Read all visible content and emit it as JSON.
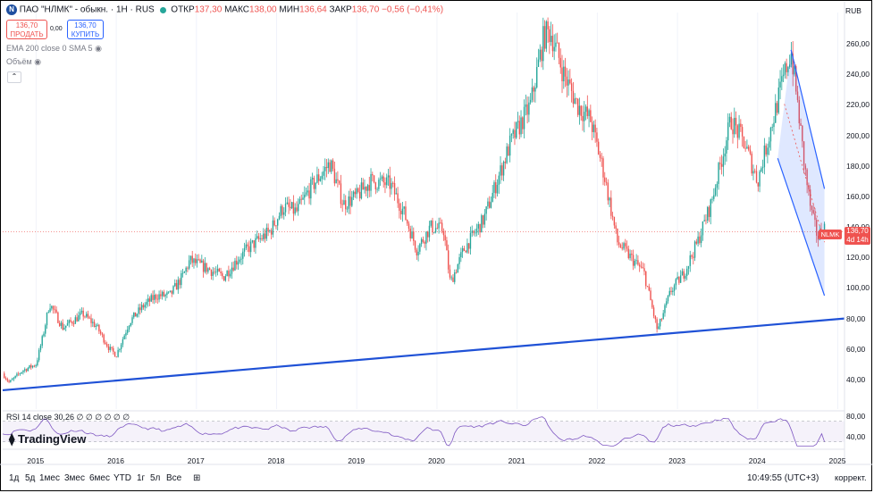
{
  "header": {
    "symbol_name": "ПАО \"НЛМК\" - обыкн. · 1Н · RUS",
    "logo_letter": "N",
    "open_label": "ОТКР",
    "open_value": "137,30",
    "high_label": "МАКС",
    "high_value": "138,00",
    "low_label": "МИН",
    "low_value": "136,64",
    "close_label": "ЗАКР",
    "close_value": "136,70",
    "change": "−0,56 (−0,41%)"
  },
  "trade": {
    "sell_price": "136,70",
    "sell_label": "ПРОДАТЬ",
    "spread": "0,00",
    "buy_price": "136,70",
    "buy_label": "КУПИТЬ"
  },
  "indicators": {
    "ema": "EMA 200 close 0 SMA 5",
    "volume": "Объём",
    "collapse_glyph": "⌃",
    "rsi": "RSI 14 close  30,26  ∅ ∅ ∅ ∅ ∅ ∅"
  },
  "brand": "TradingView",
  "price_scale": {
    "currency": "RUB",
    "ticks": [
      "260,00",
      "240,00",
      "220,00",
      "200,00",
      "180,00",
      "160,00",
      "140,00",
      "120,00",
      "100,00",
      "80,00",
      "60,00",
      "40,00"
    ]
  },
  "rsi_scale": {
    "ticks": [
      "80,00",
      "40,00"
    ]
  },
  "last_price": {
    "ticker": "NLMK",
    "value": "136,70",
    "countdown": "4d 14h"
  },
  "time_scale": {
    "ticks": [
      "2015",
      "2016",
      "2017",
      "2018",
      "2019",
      "2020",
      "2021",
      "2022",
      "2023",
      "2024",
      "2025"
    ]
  },
  "toolbar": {
    "ranges": [
      "1д",
      "5д",
      "1мес",
      "3мес",
      "6мес",
      "YTD",
      "1г",
      "5л",
      "Все"
    ],
    "clock": "10:49:55 (UTC+3)",
    "adjust": "коррект."
  },
  "colors": {
    "up": "#26a69a",
    "down": "#ef5350",
    "trend": "#1f51d6",
    "channel": "#2962ff",
    "rsi": "#7e57c2"
  },
  "chart_data": {
    "type": "candlestick",
    "title": "ПАО \"НЛМК\" - обыкн. · 1Н · RUS",
    "currency": "RUB",
    "x_range": [
      "2014-08",
      "2025-02"
    ],
    "ylim": [
      30,
      270
    ],
    "y_ticks": [
      40,
      60,
      80,
      100,
      120,
      140,
      160,
      180,
      200,
      220,
      240,
      260
    ],
    "x_ticks": [
      "2015",
      "2016",
      "2017",
      "2018",
      "2019",
      "2020",
      "2021",
      "2022",
      "2023",
      "2024",
      "2025"
    ],
    "price_path": [
      [
        "2014-08",
        44
      ],
      [
        "2014-09",
        38
      ],
      [
        "2014-11",
        46
      ],
      [
        "2015-01",
        50
      ],
      [
        "2015-02",
        68
      ],
      [
        "2015-03",
        90
      ],
      [
        "2015-05",
        74
      ],
      [
        "2015-08",
        83
      ],
      [
        "2015-10",
        75
      ],
      [
        "2015-12",
        60
      ],
      [
        "2016-01",
        56
      ],
      [
        "2016-03",
        78
      ],
      [
        "2016-05",
        88
      ],
      [
        "2016-07",
        95
      ],
      [
        "2016-09",
        95
      ],
      [
        "2016-11",
        108
      ],
      [
        "2016-12",
        118
      ],
      [
        "2017-03",
        112
      ],
      [
        "2017-05",
        107
      ],
      [
        "2017-07",
        118
      ],
      [
        "2017-09",
        127
      ],
      [
        "2017-12",
        137
      ],
      [
        "2018-02",
        153
      ],
      [
        "2018-04",
        150
      ],
      [
        "2018-06",
        165
      ],
      [
        "2018-09",
        182
      ],
      [
        "2018-11",
        155
      ],
      [
        "2019-01",
        160
      ],
      [
        "2019-03",
        170
      ],
      [
        "2019-06",
        168
      ],
      [
        "2019-08",
        150
      ],
      [
        "2019-10",
        125
      ],
      [
        "2019-12",
        140
      ],
      [
        "2020-02",
        138
      ],
      [
        "2020-03",
        103
      ],
      [
        "2020-05",
        125
      ],
      [
        "2020-08",
        145
      ],
      [
        "2020-10",
        170
      ],
      [
        "2020-12",
        195
      ],
      [
        "2021-03",
        220
      ],
      [
        "2021-05",
        265
      ],
      [
        "2021-06",
        268
      ],
      [
        "2021-08",
        240
      ],
      [
        "2021-10",
        220
      ],
      [
        "2021-12",
        210
      ],
      [
        "2022-02",
        175
      ],
      [
        "2022-04",
        130
      ],
      [
        "2022-06",
        120
      ],
      [
        "2022-08",
        110
      ],
      [
        "2022-10",
        72
      ],
      [
        "2022-12",
        98
      ],
      [
        "2023-02",
        110
      ],
      [
        "2023-04",
        130
      ],
      [
        "2023-06",
        155
      ],
      [
        "2023-09",
        210
      ],
      [
        "2023-11",
        195
      ],
      [
        "2024-01",
        170
      ],
      [
        "2024-03",
        205
      ],
      [
        "2024-05",
        240
      ],
      [
        "2024-06",
        255
      ],
      [
        "2024-07",
        220
      ],
      [
        "2024-08",
        180
      ],
      [
        "2024-09",
        150
      ],
      [
        "2024-10",
        133
      ],
      [
        "2024-11",
        140
      ],
      [
        "2024-11",
        136.7
      ]
    ],
    "trendline": [
      [
        "2014-08",
        33
      ],
      [
        "2025-02",
        80
      ]
    ],
    "channel": {
      "upper": [
        [
          "2024-06",
          256
        ],
        [
          "2024-11",
          165
        ]
      ],
      "lower": [
        [
          "2024-04",
          185
        ],
        [
          "2024-11",
          95
        ]
      ]
    },
    "last": 136.7,
    "rsi": {
      "label": "RSI 14 close",
      "value": 30.26,
      "levels": [
        70,
        30
      ],
      "ylim": [
        20,
        90
      ],
      "ticks": [
        80,
        40
      ]
    }
  }
}
